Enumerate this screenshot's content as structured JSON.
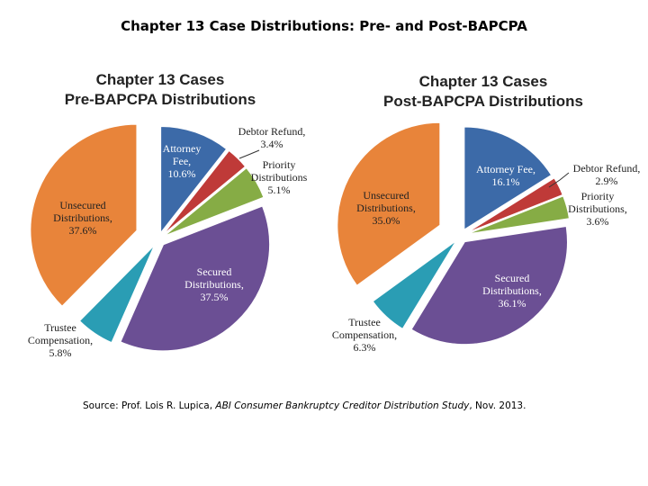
{
  "page": {
    "title": "Chapter 13 Case Distributions: Pre- and Post-BAPCPA"
  },
  "source": {
    "prefix": "Source: Prof. Lois R. Lupica, ",
    "study": "ABI Consumer Bankruptcy Creditor Distribution Study",
    "suffix": ", Nov. 2013."
  },
  "chart_data": [
    {
      "type": "pie",
      "title": [
        "Chapter 13 Cases",
        "Pre-BAPCPA Distributions"
      ],
      "slices": [
        {
          "label": "Attorney Fee,",
          "value": 10.6,
          "value_label": "10.6%",
          "color": "#3c6aa8"
        },
        {
          "label": "Debtor Refund,",
          "value": 3.4,
          "value_label": "3.4%",
          "color": "#bf3a38"
        },
        {
          "label": "Priority Distributions",
          "value": 5.1,
          "value_label": "5.1%",
          "color": "#86ac45"
        },
        {
          "label": "Secured Distributions,",
          "value": 37.5,
          "value_label": "37.5%",
          "color": "#6b4f94"
        },
        {
          "label": "Trustee Compensation,",
          "value": 5.8,
          "value_label": "5.8%",
          "color": "#2a9db4"
        },
        {
          "label": "Unsecured Distributions,",
          "value": 37.6,
          "value_label": "37.6%",
          "color": "#e8843a"
        }
      ]
    },
    {
      "type": "pie",
      "title": [
        "Chapter 13 Cases",
        "Post-BAPCPA Distributions"
      ],
      "slices": [
        {
          "label": "Attorney Fee,",
          "value": 16.1,
          "value_label": "16.1%",
          "color": "#3c6aa8"
        },
        {
          "label": "Debtor Refund,",
          "value": 2.9,
          "value_label": "2.9%",
          "color": "#bf3a38"
        },
        {
          "label": "Priority Distributions,",
          "value": 3.6,
          "value_label": "3.6%",
          "color": "#86ac45"
        },
        {
          "label": "Secured Distributions,",
          "value": 36.1,
          "value_label": "36.1%",
          "color": "#6b4f94"
        },
        {
          "label": "Trustee Compensation,",
          "value": 6.3,
          "value_label": "6.3%",
          "color": "#2a9db4"
        },
        {
          "label": "Unsecured Distributions,",
          "value": 35.0,
          "value_label": "35.0%",
          "color": "#e8843a"
        }
      ]
    }
  ]
}
